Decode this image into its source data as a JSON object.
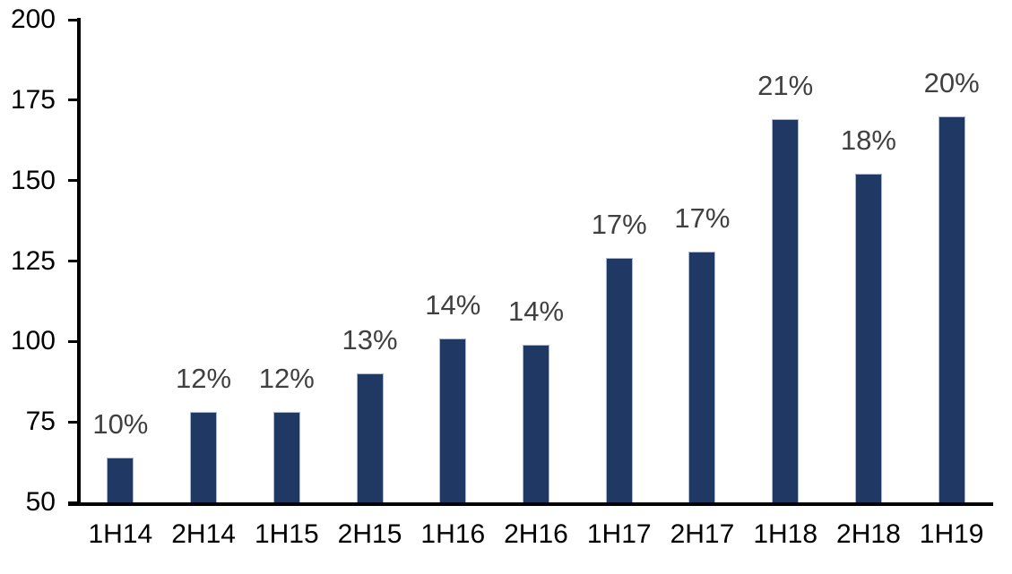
{
  "chart_data": {
    "type": "bar",
    "title": "",
    "xlabel": "",
    "ylabel": "",
    "categories": [
      "1H14",
      "2H14",
      "1H15",
      "2H15",
      "1H16",
      "2H16",
      "1H17",
      "2H17",
      "1H18",
      "2H18",
      "1H19"
    ],
    "values": [
      64,
      78,
      78,
      90,
      101,
      99,
      126,
      128,
      169,
      152,
      170
    ],
    "data_labels": [
      "10%",
      "12%",
      "12%",
      "13%",
      "14%",
      "14%",
      "17%",
      "17%",
      "21%",
      "18%",
      "20%"
    ],
    "ylim": [
      50,
      200
    ],
    "yticks": [
      50,
      75,
      100,
      125,
      150,
      175,
      200
    ],
    "grid": "off",
    "legend": "none",
    "colors": {
      "bar_fill": "#1f3864",
      "bar_border": "#a9b7d1",
      "data_label": "#404040",
      "axis_text": "#000000",
      "axis_line": "#000000",
      "background": "#ffffff"
    }
  }
}
